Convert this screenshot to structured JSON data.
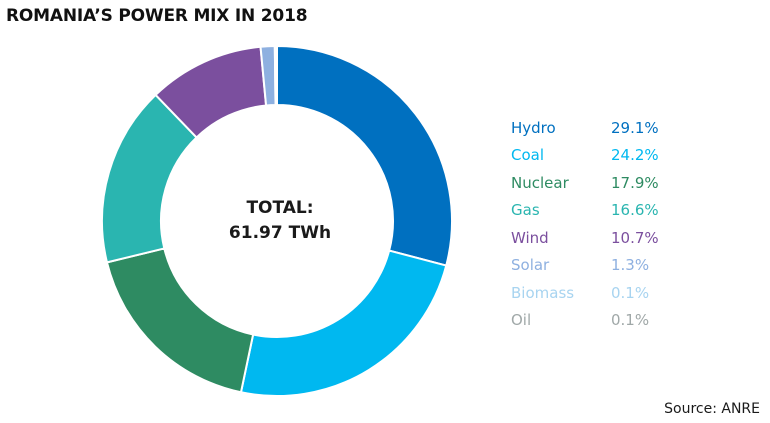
{
  "title": "ROMANIA’S POWER MIX IN 2018",
  "center": {
    "line1": "TOTAL:",
    "line2": "61.97 TWh"
  },
  "source": "Source: ANRE",
  "chart_data": {
    "type": "pie",
    "donut": true,
    "legend_position": "right",
    "categories": [
      "Hydro",
      "Coal",
      "Nuclear",
      "Gas",
      "Wind",
      "Solar",
      "Biomass",
      "Oil"
    ],
    "values": [
      29.1,
      24.2,
      17.9,
      16.6,
      10.7,
      1.3,
      0.1,
      0.1
    ],
    "value_labels": [
      "29.1%",
      "24.2%",
      "17.9%",
      "16.6%",
      "10.7%",
      "1.3%",
      "0.1%",
      "0.1%"
    ],
    "colors": [
      "#0070C0",
      "#00B8F0",
      "#2E8B62",
      "#2AB5B0",
      "#7B4F9E",
      "#8EB0E0",
      "#A8D4F0",
      "#A0A8A8"
    ]
  }
}
